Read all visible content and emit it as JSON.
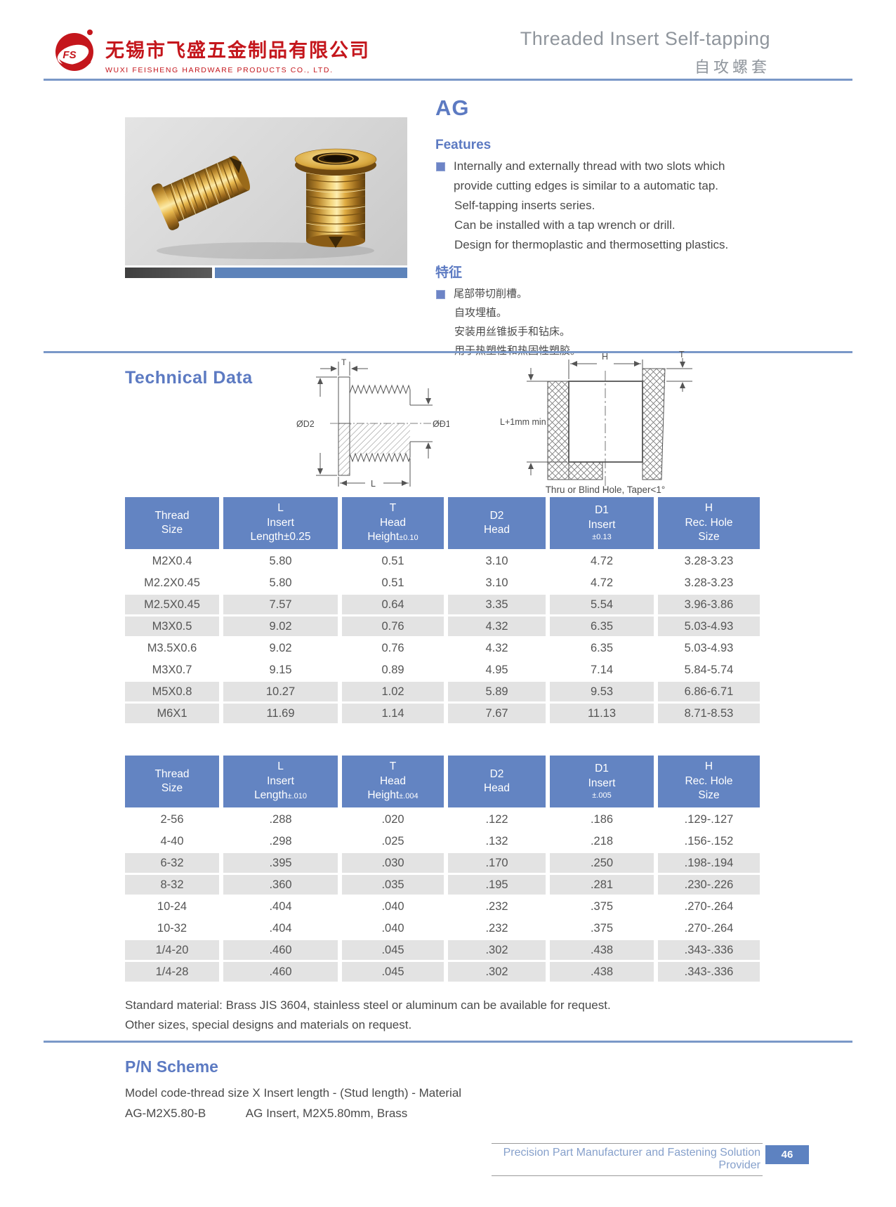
{
  "header": {
    "logo_monogram": "FS",
    "company_name_cn": "无锡市飞盛五金制品有限公司",
    "company_name_en": "WUXI FEISHENG HARDWARE PRODUCTS CO., LTD.",
    "doc_title_en": "Threaded Insert Self-tapping",
    "doc_title_cn": "自攻螺套"
  },
  "product": {
    "code": "AG",
    "features_title": "Features",
    "features": [
      "Internally and externally thread with two slots which provide cutting edges is similar to a automatic tap.",
      "Self-tapping inserts series.",
      "Can be installed with a tap wrench or drill.",
      "Design for thermoplastic and thermosetting plastics."
    ],
    "features_title_cn": "特征",
    "features_cn": [
      "尾部带切削槽。",
      "自攻埋植。",
      "安装用丝锥扳手和钻床。",
      "用于热塑性和热固性塑胶。"
    ]
  },
  "technical": {
    "title": "Technical Data",
    "insert_diagram": {
      "t": "T",
      "d2": "ØD2",
      "d1": "ØD1",
      "l": "L"
    },
    "hole_diagram": {
      "h": "H",
      "t": "T",
      "depth": "L+1mm min",
      "caption": "Thru or Blind Hole, Taper<1°"
    }
  },
  "table_metric": {
    "columns": [
      {
        "lines": [
          "Thread",
          "Size"
        ]
      },
      {
        "lines": [
          "L",
          "Insert",
          "Length±0.25"
        ]
      },
      {
        "lines": [
          "T",
          "Head",
          "Height~±0.10"
        ]
      },
      {
        "lines": [
          "D2",
          "Head"
        ]
      },
      {
        "lines": [
          "D1",
          "Insert",
          "~±0.13"
        ]
      },
      {
        "lines": [
          "H",
          "Rec. Hole",
          "Size"
        ]
      }
    ],
    "rows": [
      [
        "M2X0.4",
        "5.80",
        "0.51",
        "3.10",
        "4.72",
        "3.28-3.23"
      ],
      [
        "M2.2X0.45",
        "5.80",
        "0.51",
        "3.10",
        "4.72",
        "3.28-3.23"
      ],
      [
        "M2.5X0.45",
        "7.57",
        "0.64",
        "3.35",
        "5.54",
        "3.96-3.86"
      ],
      [
        "M3X0.5",
        "9.02",
        "0.76",
        "4.32",
        "6.35",
        "5.03-4.93"
      ],
      [
        "M3.5X0.6",
        "9.02",
        "0.76",
        "4.32",
        "6.35",
        "5.03-4.93"
      ],
      [
        "M3X0.7",
        "9.15",
        "0.89",
        "4.95",
        "7.14",
        "5.84-5.74"
      ],
      [
        "M5X0.8",
        "10.27",
        "1.02",
        "5.89",
        "9.53",
        "6.86-6.71"
      ],
      [
        "M6X1",
        "11.69",
        "1.14",
        "7.67",
        "11.13",
        "8.71-8.53"
      ]
    ]
  },
  "table_inch": {
    "columns": [
      {
        "lines": [
          "Thread",
          "Size"
        ]
      },
      {
        "lines": [
          "L",
          "Insert",
          "Length~±.010"
        ]
      },
      {
        "lines": [
          "T",
          "Head",
          "Height~±.004"
        ]
      },
      {
        "lines": [
          "D2",
          "Head"
        ]
      },
      {
        "lines": [
          "D1",
          "Insert",
          "~±.005"
        ]
      },
      {
        "lines": [
          "H",
          "Rec. Hole",
          "Size"
        ]
      }
    ],
    "rows": [
      [
        "2-56",
        ".288",
        ".020",
        ".122",
        ".186",
        ".129-.127"
      ],
      [
        "4-40",
        ".298",
        ".025",
        ".132",
        ".218",
        ".156-.152"
      ],
      [
        "6-32",
        ".395",
        ".030",
        ".170",
        ".250",
        ".198-.194"
      ],
      [
        "8-32",
        ".360",
        ".035",
        ".195",
        ".281",
        ".230-.226"
      ],
      [
        "10-24",
        ".404",
        ".040",
        ".232",
        ".375",
        ".270-.264"
      ],
      [
        "10-32",
        ".404",
        ".040",
        ".232",
        ".375",
        ".270-.264"
      ],
      [
        "1/4-20",
        ".460",
        ".045",
        ".302",
        ".438",
        ".343-.336"
      ],
      [
        "1/4-28",
        ".460",
        ".045",
        ".302",
        ".438",
        ".343-.336"
      ]
    ]
  },
  "notes": {
    "line1": "Standard material: Brass JIS 3604, stainless steel or aluminum can be available for request.",
    "line2": "Other sizes, special designs and materials on request."
  },
  "pn_scheme": {
    "title": "P/N Scheme",
    "pattern": "Model code-thread size X Insert length - (Stud length) - Material",
    "example_code": "AG-M2X5.80-B",
    "example_desc": "AG Insert, M2X5.80mm, Brass"
  },
  "footer": {
    "tagline": "Precision Part Manufacturer and Fastening Solution Provider",
    "page_number": "46"
  },
  "colors": {
    "accent_blue": "#5c7ac2",
    "table_header_blue": "#6384c2",
    "row_shade_gray": "#e3e3e3",
    "brand_red": "#c4161c",
    "title_gray": "#8f959c",
    "divider_blue": "#7a98c8"
  }
}
